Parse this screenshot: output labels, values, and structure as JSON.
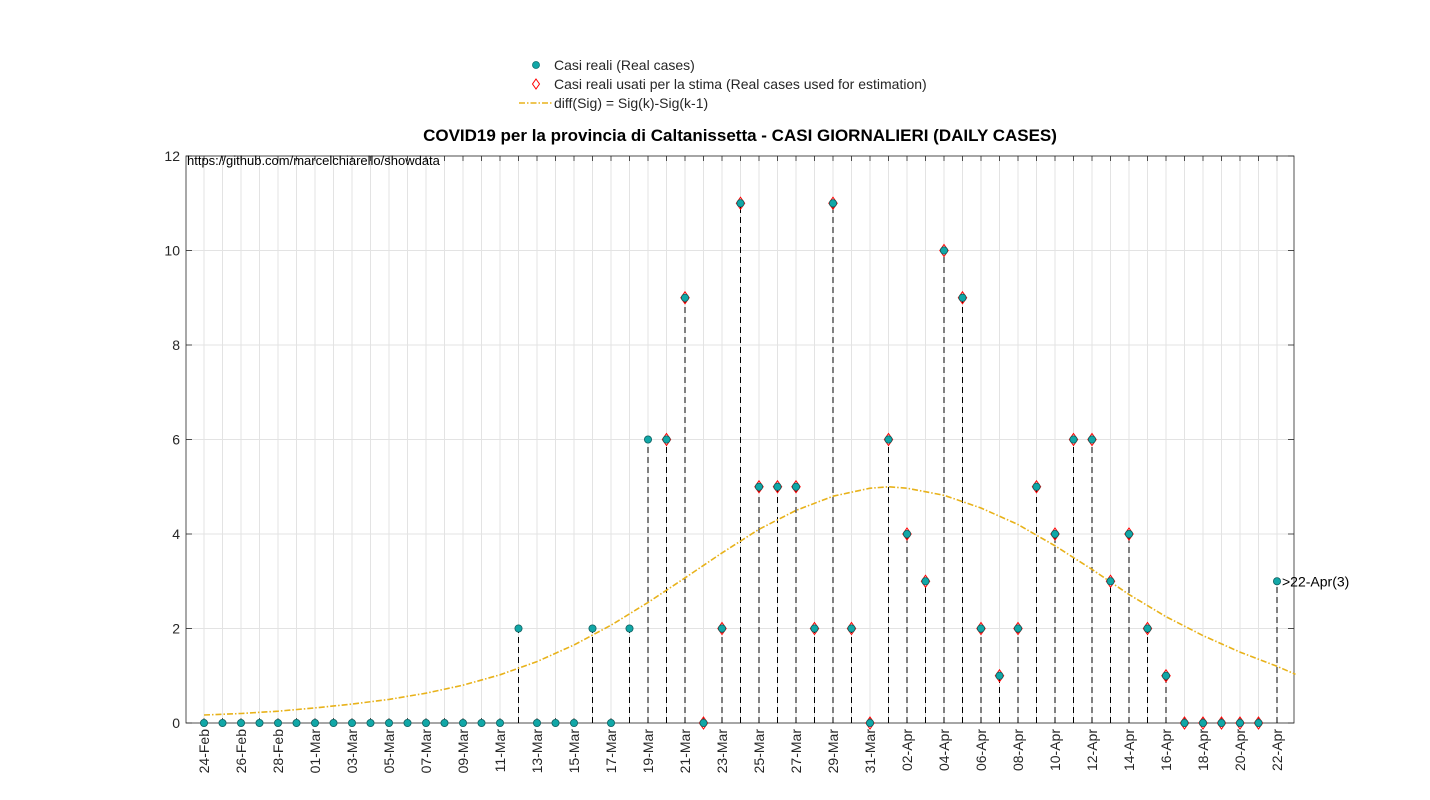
{
  "chart_data": {
    "type": "line",
    "title": "COVID19 per la provincia di Caltanissetta - CASI GIORNALIERI (DAILY CASES)",
    "annotation": "https://github.com/marcelchiarello/showdata",
    "last_label": ">22-Apr(3)",
    "ylim": [
      0,
      12
    ],
    "yticks": [
      "0",
      "2",
      "4",
      "6",
      "8",
      "10",
      "12"
    ],
    "grid": true,
    "legend_position": "top-center",
    "x_tick_labels": [
      "24-Feb",
      "26-Feb",
      "28-Feb",
      "01-Mar",
      "03-Mar",
      "05-Mar",
      "07-Mar",
      "09-Mar",
      "11-Mar",
      "13-Mar",
      "15-Mar",
      "17-Mar",
      "19-Mar",
      "21-Mar",
      "23-Mar",
      "25-Mar",
      "27-Mar",
      "29-Mar",
      "31-Mar",
      "02-Apr",
      "04-Apr",
      "06-Apr",
      "08-Apr",
      "10-Apr",
      "12-Apr",
      "14-Apr",
      "16-Apr",
      "18-Apr",
      "20-Apr",
      "22-Apr"
    ],
    "dates": [
      "24-Feb",
      "25-Feb",
      "26-Feb",
      "27-Feb",
      "28-Feb",
      "29-Feb",
      "01-Mar",
      "02-Mar",
      "03-Mar",
      "04-Mar",
      "05-Mar",
      "06-Mar",
      "07-Mar",
      "08-Mar",
      "09-Mar",
      "10-Mar",
      "11-Mar",
      "12-Mar",
      "13-Mar",
      "14-Mar",
      "15-Mar",
      "16-Mar",
      "17-Mar",
      "18-Mar",
      "19-Mar",
      "20-Mar",
      "21-Mar",
      "22-Mar",
      "23-Mar",
      "24-Mar",
      "25-Mar",
      "26-Mar",
      "27-Mar",
      "28-Mar",
      "29-Mar",
      "30-Mar",
      "31-Mar",
      "01-Apr",
      "02-Apr",
      "03-Apr",
      "04-Apr",
      "05-Apr",
      "06-Apr",
      "07-Apr",
      "08-Apr",
      "09-Apr",
      "10-Apr",
      "11-Apr",
      "12-Apr",
      "13-Apr",
      "14-Apr",
      "15-Apr",
      "16-Apr",
      "17-Apr",
      "18-Apr",
      "19-Apr",
      "20-Apr",
      "21-Apr",
      "22-Apr"
    ],
    "real_cases": [
      0,
      0,
      0,
      0,
      0,
      0,
      0,
      0,
      0,
      0,
      0,
      0,
      0,
      0,
      0,
      0,
      0,
      2,
      0,
      0,
      0,
      2,
      0,
      2,
      6,
      6,
      9,
      0,
      2,
      11,
      5,
      5,
      5,
      2,
      11,
      2,
      0,
      6,
      4,
      3,
      10,
      9,
      2,
      1,
      2,
      5,
      4,
      6,
      6,
      3,
      4,
      2,
      1,
      0,
      0,
      0,
      0,
      0,
      3
    ],
    "estimation_used": [
      false,
      false,
      false,
      false,
      false,
      false,
      false,
      false,
      false,
      false,
      false,
      false,
      false,
      false,
      false,
      false,
      false,
      false,
      false,
      false,
      false,
      false,
      false,
      false,
      false,
      true,
      true,
      true,
      true,
      true,
      true,
      true,
      true,
      true,
      true,
      true,
      true,
      true,
      true,
      true,
      true,
      true,
      true,
      true,
      true,
      true,
      true,
      true,
      true,
      true,
      true,
      true,
      true,
      true,
      true,
      true,
      true,
      true,
      false
    ],
    "fit_curve": {
      "x": [
        "24-Feb",
        "26-Feb",
        "28-Feb",
        "01-Mar",
        "03-Mar",
        "05-Mar",
        "07-Mar",
        "09-Mar",
        "11-Mar",
        "13-Mar",
        "15-Mar",
        "17-Mar",
        "19-Mar",
        "21-Mar",
        "23-Mar",
        "25-Mar",
        "27-Mar",
        "29-Mar",
        "31-Mar",
        "01-Apr",
        "02-Apr",
        "04-Apr",
        "06-Apr",
        "08-Apr",
        "10-Apr",
        "12-Apr",
        "14-Apr",
        "16-Apr",
        "18-Apr",
        "20-Apr",
        "22-Apr",
        "23-Apr"
      ],
      "y": [
        0.17,
        0.2,
        0.25,
        0.32,
        0.4,
        0.5,
        0.63,
        0.8,
        1.02,
        1.3,
        1.65,
        2.07,
        2.55,
        3.07,
        3.6,
        4.1,
        4.5,
        4.8,
        4.97,
        5.0,
        4.97,
        4.82,
        4.55,
        4.2,
        3.75,
        3.25,
        2.72,
        2.25,
        1.85,
        1.5,
        1.2,
        1.03
      ]
    },
    "series": [
      {
        "name": "Casi reali (Real cases)",
        "color": "#11a7a7",
        "marker": "circle"
      },
      {
        "name": "Casi reali usati per la stima (Real cases used for estimation)",
        "color": "#ff0000",
        "marker": "diamond"
      },
      {
        "name": "diff(Sig) = Sig(k)-Sig(k-1)",
        "color": "#e8b21a",
        "line": "dash-dot"
      }
    ]
  }
}
